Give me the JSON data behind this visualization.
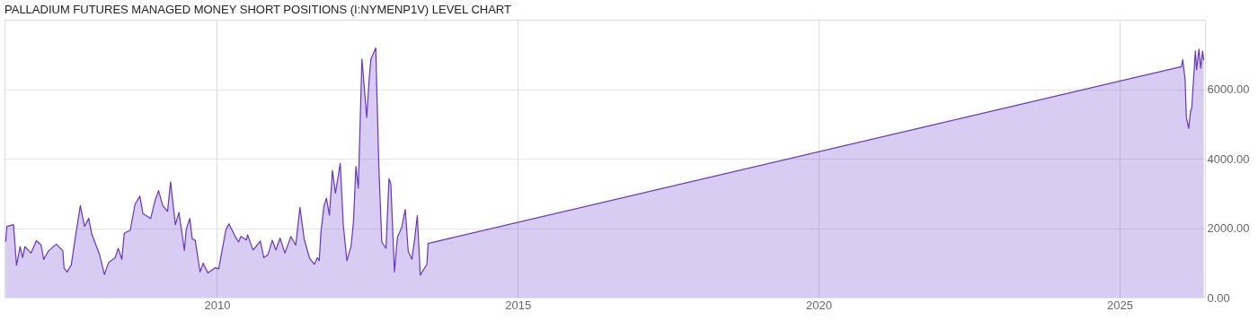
{
  "chart_data": {
    "type": "area",
    "title": "PALLADIUM FUTURES MANAGED MONEY SHORT POSITIONS (I:NYMENP1V) LEVEL CHART",
    "x": [
      2006.49,
      2006.51,
      2006.62,
      2006.67,
      2006.73,
      2006.77,
      2006.81,
      2006.91,
      2007.0,
      2007.08,
      2007.12,
      2007.2,
      2007.33,
      2007.44,
      2007.46,
      2007.51,
      2007.58,
      2007.64,
      2007.73,
      2007.8,
      2007.87,
      2007.92,
      2008.05,
      2008.13,
      2008.2,
      2008.31,
      2008.36,
      2008.42,
      2008.46,
      2008.56,
      2008.64,
      2008.72,
      2008.77,
      2008.9,
      2008.97,
      2009.03,
      2009.1,
      2009.18,
      2009.23,
      2009.31,
      2009.37,
      2009.46,
      2009.49,
      2009.55,
      2009.59,
      2009.64,
      2009.72,
      2009.77,
      2009.85,
      2009.97,
      2010.03,
      2010.15,
      2010.2,
      2010.31,
      2010.36,
      2010.4,
      2010.49,
      2010.51,
      2010.6,
      2010.67,
      2010.72,
      2010.78,
      2010.85,
      2010.92,
      2010.98,
      2011.05,
      2011.13,
      2011.23,
      2011.31,
      2011.38,
      2011.45,
      2011.54,
      2011.62,
      2011.67,
      2011.7,
      2011.73,
      2011.78,
      2011.82,
      2011.87,
      2011.92,
      2011.97,
      2012.05,
      2012.1,
      2012.16,
      2012.23,
      2012.27,
      2012.31,
      2012.35,
      2012.41,
      2012.49,
      2012.53,
      2012.56,
      2012.64,
      2012.69,
      2012.74,
      2012.81,
      2012.86,
      2012.89,
      2012.95,
      2013.0,
      2013.07,
      2013.13,
      2013.18,
      2013.24,
      2013.29,
      2013.33,
      2013.38,
      2013.49,
      2013.51,
      2026.03,
      2026.05,
      2026.09,
      2026.11,
      2026.15,
      2026.18,
      2026.2,
      2026.26,
      2026.28,
      2026.32,
      2026.35,
      2026.38,
      2026.4
    ],
    "series": [
      {
        "color": "#6633cc",
        "values": [
          1610,
          2050,
          2100,
          930,
          1470,
          1150,
          1470,
          1280,
          1640,
          1510,
          1100,
          1340,
          1540,
          1350,
          850,
          740,
          940,
          1650,
          2650,
          2050,
          2280,
          1830,
          1240,
          660,
          1010,
          1150,
          1420,
          1100,
          1850,
          1940,
          2690,
          2920,
          2420,
          2280,
          2780,
          3080,
          2650,
          2480,
          3330,
          2100,
          2450,
          1360,
          1960,
          2280,
          1690,
          1650,
          740,
          990,
          710,
          860,
          830,
          1960,
          2120,
          1740,
          1600,
          1760,
          1660,
          1810,
          1370,
          1510,
          1630,
          1150,
          1240,
          1650,
          1370,
          1710,
          1280,
          1760,
          1510,
          2600,
          1690,
          1130,
          960,
          1150,
          1060,
          1900,
          2650,
          2860,
          2370,
          3660,
          3010,
          3870,
          2100,
          1060,
          1480,
          2190,
          3780,
          3150,
          6870,
          5190,
          6280,
          6870,
          7190,
          3840,
          1600,
          1420,
          3420,
          3280,
          740,
          1740,
          2010,
          2540,
          1330,
          1100,
          1740,
          2360,
          650,
          960,
          1560,
          6650,
          6850,
          6280,
          5190,
          4870,
          5370,
          5460,
          7100,
          6560,
          7150,
          6600,
          7100,
          6830
        ]
      }
    ],
    "xlim": [
      2006.47,
      2026.42
    ],
    "xticks": [
      2010,
      2015,
      2020,
      2025
    ],
    "ylim": [
      0,
      8000
    ],
    "yticks": [
      {
        "value": 0,
        "label": "0.00"
      },
      {
        "value": 2000,
        "label": "2000.00"
      },
      {
        "value": 4000,
        "label": "4000.00"
      },
      {
        "value": 6000,
        "label": "6000.00"
      }
    ],
    "grid": true
  }
}
